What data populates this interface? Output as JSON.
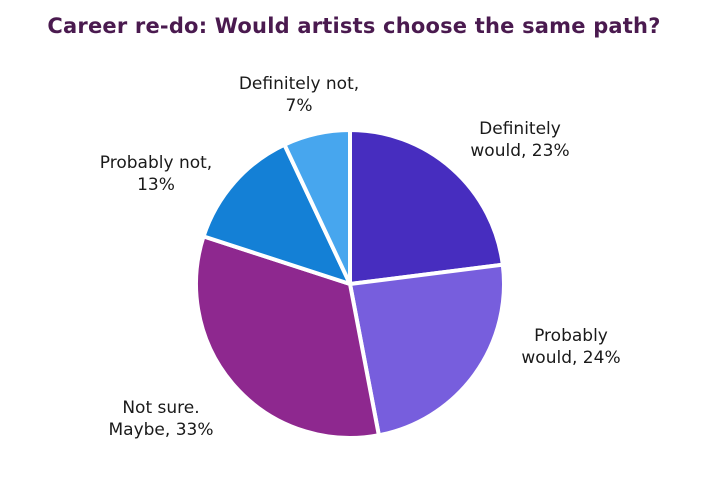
{
  "chart_data": {
    "type": "pie",
    "title": "Career re-do: Would artists choose the same path?",
    "start_angle_deg": 0,
    "direction": "clockwise",
    "slices": [
      {
        "label_lines": [
          "Definitely",
          "would, 23%"
        ],
        "value": 23,
        "color": "#472dbf"
      },
      {
        "label_lines": [
          "Probably",
          "would, 24%"
        ],
        "value": 24,
        "color": "#775edd"
      },
      {
        "label_lines": [
          "Not sure.",
          "Maybe, 33%"
        ],
        "value": 33,
        "color": "#8e288f"
      },
      {
        "label_lines": [
          "Probably not,",
          "13%"
        ],
        "value": 13,
        "color": "#1480d6"
      },
      {
        "label_lines": [
          "Definitely not,",
          "7%"
        ],
        "value": 7,
        "color": "#47a6ee"
      }
    ]
  }
}
